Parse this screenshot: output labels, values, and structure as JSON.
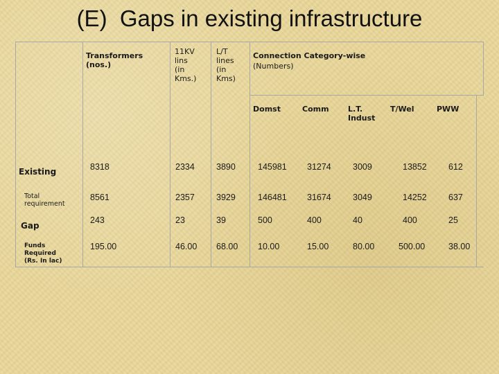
{
  "title": "(E)  Gaps in existing infrastructure",
  "table": {
    "headers": {
      "transformers": "Transformers\n(nos.)",
      "kv_lines": "11KV\nlins\n(in\nKms.)",
      "lt_lines": "L/T\nlines\n(in\nKms)",
      "connection_title": "Connection Category-wise",
      "connection_sub": "(Numbers)",
      "categories": [
        "Domst",
        "Comm",
        "L.T.\nIndust",
        "T/Wel",
        "PWW"
      ]
    },
    "rows": [
      {
        "label": "Existing",
        "values": [
          "8318",
          "2334",
          "3890",
          "145981",
          "31274",
          "3009",
          "13852",
          "612"
        ]
      },
      {
        "label": "Total\nrequirement",
        "values": [
          "8561",
          "2357",
          "3929",
          "146481",
          "31674",
          "3049",
          "14252",
          "637"
        ]
      },
      {
        "label": "Gap",
        "values": [
          "243",
          "23",
          "39",
          "500",
          "400",
          "40",
          "400",
          "25"
        ]
      },
      {
        "label": "Funds\nRequired\n(Rs. In lac)",
        "values": [
          "195.00",
          "46.00",
          "68.00",
          "10.00",
          "15.00",
          "80.00",
          "500.00",
          "38.00"
        ]
      }
    ]
  }
}
